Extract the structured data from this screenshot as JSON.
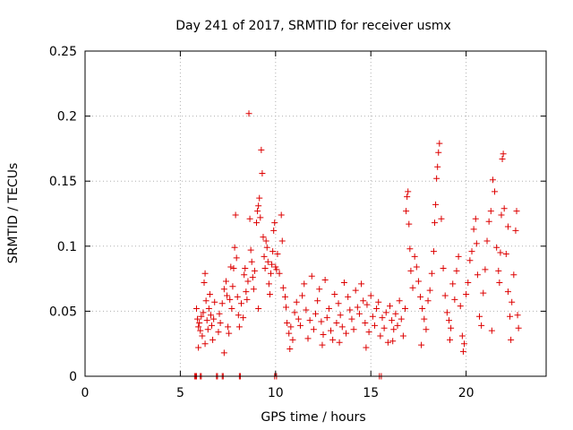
{
  "chart_data": {
    "type": "scatter",
    "title": "Day 241 of 2017, SRMTID for receiver usmx",
    "xlabel": "GPS time / hours",
    "ylabel": "SRMTID / TECUs",
    "xlim": [
      0,
      24.2
    ],
    "ylim": [
      0,
      0.25
    ],
    "grid": true,
    "marker": "+",
    "series_color": "#dd0000",
    "x_ticks": [
      0,
      5,
      10,
      15,
      20
    ],
    "x_tick_labels": [
      "0",
      "5",
      "10",
      "15",
      "20"
    ],
    "y_ticks": [
      0,
      0.05,
      0.1,
      0.15,
      0.2,
      0.25
    ],
    "y_tick_labels": [
      "0",
      "0.05",
      "0.1",
      "0.15",
      "0.2",
      "0.25"
    ],
    "points": [
      [
        5.85,
        0.052
      ],
      [
        5.9,
        0.044
      ],
      [
        5.95,
        0.038
      ],
      [
        6.0,
        0.041
      ],
      [
        6.05,
        0.035
      ],
      [
        6.1,
        0.046
      ],
      [
        6.15,
        0.031
      ],
      [
        6.2,
        0.049
      ],
      [
        6.25,
        0.072
      ],
      [
        6.3,
        0.079
      ],
      [
        6.35,
        0.058
      ],
      [
        6.4,
        0.043
      ],
      [
        6.45,
        0.036
      ],
      [
        6.5,
        0.052
      ],
      [
        6.55,
        0.063
      ],
      [
        6.6,
        0.047
      ],
      [
        6.65,
        0.039
      ],
      [
        6.7,
        0.028
      ],
      [
        6.75,
        0.044
      ],
      [
        6.8,
        0.057
      ],
      [
        7.0,
        0.034
      ],
      [
        7.05,
        0.048
      ],
      [
        7.1,
        0.041
      ],
      [
        7.2,
        0.056
      ],
      [
        7.3,
        0.067
      ],
      [
        7.4,
        0.073
      ],
      [
        7.45,
        0.062
      ],
      [
        7.5,
        0.038
      ],
      [
        7.55,
        0.033
      ],
      [
        7.6,
        0.059
      ],
      [
        7.65,
        0.084
      ],
      [
        7.7,
        0.052
      ],
      [
        7.75,
        0.069
      ],
      [
        7.8,
        0.083
      ],
      [
        7.85,
        0.099
      ],
      [
        7.9,
        0.124
      ],
      [
        7.95,
        0.091
      ],
      [
        8.0,
        0.061
      ],
      [
        8.05,
        0.047
      ],
      [
        8.1,
        0.038
      ],
      [
        8.2,
        0.056
      ],
      [
        8.3,
        0.045
      ],
      [
        8.35,
        0.078
      ],
      [
        8.4,
        0.083
      ],
      [
        8.45,
        0.065
      ],
      [
        8.5,
        0.059
      ],
      [
        8.55,
        0.073
      ],
      [
        8.6,
        0.202
      ],
      [
        8.65,
        0.121
      ],
      [
        8.7,
        0.097
      ],
      [
        8.75,
        0.088
      ],
      [
        8.8,
        0.076
      ],
      [
        8.85,
        0.067
      ],
      [
        8.9,
        0.081
      ],
      [
        9.0,
        0.118
      ],
      [
        9.05,
        0.127
      ],
      [
        9.1,
        0.131
      ],
      [
        9.15,
        0.137
      ],
      [
        9.2,
        0.122
      ],
      [
        9.25,
        0.174
      ],
      [
        9.3,
        0.156
      ],
      [
        9.35,
        0.107
      ],
      [
        9.4,
        0.092
      ],
      [
        9.45,
        0.083
      ],
      [
        9.5,
        0.104
      ],
      [
        9.55,
        0.099
      ],
      [
        9.6,
        0.088
      ],
      [
        9.65,
        0.071
      ],
      [
        9.7,
        0.063
      ],
      [
        9.75,
        0.079
      ],
      [
        9.8,
        0.086
      ],
      [
        9.85,
        0.096
      ],
      [
        9.9,
        0.112
      ],
      [
        9.95,
        0.118
      ],
      [
        10.0,
        0.084
      ],
      [
        10.05,
        0.082
      ],
      [
        10.1,
        0.094
      ],
      [
        10.2,
        0.079
      ],
      [
        10.3,
        0.124
      ],
      [
        10.35,
        0.104
      ],
      [
        10.4,
        0.068
      ],
      [
        10.5,
        0.061
      ],
      [
        10.55,
        0.053
      ],
      [
        10.6,
        0.041
      ],
      [
        10.7,
        0.033
      ],
      [
        10.8,
        0.038
      ],
      [
        10.9,
        0.028
      ],
      [
        11.0,
        0.049
      ],
      [
        11.1,
        0.057
      ],
      [
        11.2,
        0.044
      ],
      [
        11.3,
        0.039
      ],
      [
        11.4,
        0.062
      ],
      [
        11.5,
        0.071
      ],
      [
        11.6,
        0.051
      ],
      [
        11.7,
        0.029
      ],
      [
        11.8,
        0.043
      ],
      [
        11.9,
        0.077
      ],
      [
        12.0,
        0.036
      ],
      [
        12.1,
        0.048
      ],
      [
        12.2,
        0.058
      ],
      [
        12.3,
        0.067
      ],
      [
        12.4,
        0.042
      ],
      [
        12.5,
        0.032
      ],
      [
        12.6,
        0.074
      ],
      [
        12.7,
        0.045
      ],
      [
        12.8,
        0.052
      ],
      [
        12.9,
        0.035
      ],
      [
        13.0,
        0.028
      ],
      [
        13.1,
        0.063
      ],
      [
        13.2,
        0.041
      ],
      [
        13.3,
        0.056
      ],
      [
        13.4,
        0.047
      ],
      [
        13.5,
        0.038
      ],
      [
        13.6,
        0.072
      ],
      [
        13.7,
        0.033
      ],
      [
        13.8,
        0.061
      ],
      [
        13.9,
        0.051
      ],
      [
        14.0,
        0.044
      ],
      [
        14.1,
        0.036
      ],
      [
        14.2,
        0.066
      ],
      [
        14.3,
        0.053
      ],
      [
        14.4,
        0.048
      ],
      [
        14.5,
        0.071
      ],
      [
        14.6,
        0.058
      ],
      [
        14.7,
        0.041
      ],
      [
        14.8,
        0.055
      ],
      [
        14.9,
        0.034
      ],
      [
        15.0,
        0.062
      ],
      [
        15.1,
        0.046
      ],
      [
        15.2,
        0.039
      ],
      [
        15.3,
        0.052
      ],
      [
        15.4,
        0.057
      ],
      [
        15.5,
        0.031
      ],
      [
        15.6,
        0.045
      ],
      [
        15.7,
        0.037
      ],
      [
        15.8,
        0.049
      ],
      [
        15.9,
        0.026
      ],
      [
        16.0,
        0.054
      ],
      [
        16.1,
        0.043
      ],
      [
        16.2,
        0.036
      ],
      [
        16.3,
        0.048
      ],
      [
        16.4,
        0.039
      ],
      [
        16.5,
        0.058
      ],
      [
        16.6,
        0.044
      ],
      [
        16.7,
        0.031
      ],
      [
        16.8,
        0.052
      ],
      [
        16.85,
        0.127
      ],
      [
        16.9,
        0.138
      ],
      [
        16.95,
        0.142
      ],
      [
        17.0,
        0.117
      ],
      [
        17.05,
        0.098
      ],
      [
        17.1,
        0.081
      ],
      [
        17.2,
        0.068
      ],
      [
        17.3,
        0.092
      ],
      [
        17.4,
        0.084
      ],
      [
        17.5,
        0.073
      ],
      [
        17.6,
        0.061
      ],
      [
        17.7,
        0.052
      ],
      [
        17.8,
        0.044
      ],
      [
        17.9,
        0.036
      ],
      [
        18.0,
        0.058
      ],
      [
        18.1,
        0.066
      ],
      [
        18.2,
        0.079
      ],
      [
        18.3,
        0.096
      ],
      [
        18.35,
        0.118
      ],
      [
        18.4,
        0.132
      ],
      [
        18.45,
        0.152
      ],
      [
        18.5,
        0.161
      ],
      [
        18.55,
        0.172
      ],
      [
        18.6,
        0.179
      ],
      [
        18.7,
        0.121
      ],
      [
        18.8,
        0.083
      ],
      [
        18.9,
        0.062
      ],
      [
        19.0,
        0.049
      ],
      [
        19.1,
        0.043
      ],
      [
        19.2,
        0.037
      ],
      [
        19.3,
        0.071
      ],
      [
        19.4,
        0.059
      ],
      [
        19.5,
        0.081
      ],
      [
        19.6,
        0.092
      ],
      [
        19.7,
        0.054
      ],
      [
        19.8,
        0.031
      ],
      [
        19.85,
        0.019
      ],
      [
        19.9,
        0.025
      ],
      [
        20.0,
        0.063
      ],
      [
        20.1,
        0.072
      ],
      [
        20.2,
        0.089
      ],
      [
        20.3,
        0.096
      ],
      [
        20.4,
        0.113
      ],
      [
        20.5,
        0.121
      ],
      [
        20.55,
        0.102
      ],
      [
        20.6,
        0.078
      ],
      [
        20.7,
        0.046
      ],
      [
        20.8,
        0.039
      ],
      [
        20.9,
        0.064
      ],
      [
        21.0,
        0.082
      ],
      [
        21.1,
        0.104
      ],
      [
        21.2,
        0.119
      ],
      [
        21.3,
        0.127
      ],
      [
        21.4,
        0.151
      ],
      [
        21.5,
        0.142
      ],
      [
        21.6,
        0.099
      ],
      [
        21.7,
        0.081
      ],
      [
        21.75,
        0.072
      ],
      [
        21.8,
        0.095
      ],
      [
        21.85,
        0.124
      ],
      [
        21.9,
        0.167
      ],
      [
        21.95,
        0.171
      ],
      [
        22.0,
        0.129
      ],
      [
        22.1,
        0.094
      ],
      [
        22.2,
        0.065
      ],
      [
        22.3,
        0.046
      ],
      [
        22.35,
        0.028
      ],
      [
        22.4,
        0.057
      ],
      [
        22.5,
        0.078
      ],
      [
        22.6,
        0.112
      ],
      [
        22.65,
        0.127
      ],
      [
        22.7,
        0.047
      ],
      [
        22.75,
        0.037
      ],
      [
        22.2,
        0.115
      ],
      [
        5.95,
        0.022
      ],
      [
        6.3,
        0.025
      ],
      [
        7.3,
        0.018
      ],
      [
        9.1,
        0.052
      ],
      [
        10.75,
        0.021
      ],
      [
        12.45,
        0.024
      ],
      [
        13.35,
        0.026
      ],
      [
        14.75,
        0.022
      ],
      [
        16.15,
        0.027
      ],
      [
        17.65,
        0.024
      ],
      [
        19.15,
        0.028
      ],
      [
        21.35,
        0.035
      ]
    ],
    "zero_points": [
      5.75,
      5.8,
      5.85,
      6.05,
      6.1,
      6.9,
      6.95,
      7.2,
      7.25,
      8.1,
      8.15,
      9.95,
      10.05,
      15.45,
      15.55
    ]
  }
}
